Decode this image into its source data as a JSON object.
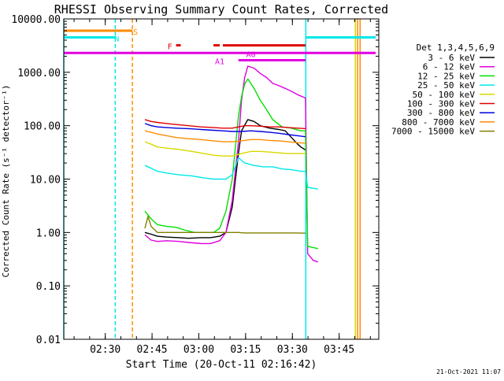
{
  "chart_data": {
    "type": "line",
    "title": "RHESSI Observing Summary Count Rates, Corrected",
    "xlabel": "Start Time (20-Oct-11 02:16:42)",
    "ylabel": "Corrected Count Rate (s⁻¹ detector⁻¹)",
    "footer": "21-Oct-2021 11:07",
    "x_unit": "minutes after 02:16:42",
    "x_range": [
      0,
      101
    ],
    "y_scale": "log",
    "ylim": [
      0.01,
      10000
    ],
    "x_ticks": [
      {
        "x": 13.3,
        "label": "02:30"
      },
      {
        "x": 28.3,
        "label": "02:45"
      },
      {
        "x": 43.3,
        "label": "03:00"
      },
      {
        "x": 58.3,
        "label": "03:15"
      },
      {
        "x": 73.3,
        "label": "03:30"
      },
      {
        "x": 88.3,
        "label": "03:45"
      }
    ],
    "y_ticks": [
      {
        "y": 0.01,
        "label": "0.01"
      },
      {
        "y": 0.1,
        "label": "0.10"
      },
      {
        "y": 1,
        "label": "1.00"
      },
      {
        "y": 10,
        "label": "10.00"
      },
      {
        "y": 100,
        "label": "100.00"
      },
      {
        "y": 1000,
        "label": "1000.00"
      },
      {
        "y": 10000,
        "label": "10000.00"
      }
    ],
    "legend": {
      "title": "Det 1,3,4,5,6,9",
      "position": "right"
    },
    "series": [
      {
        "name": "3 - 6 keV",
        "color": "#000000",
        "points": [
          [
            26,
            1.0
          ],
          [
            28,
            0.93
          ],
          [
            30,
            0.85
          ],
          [
            33,
            0.82
          ],
          [
            37,
            0.8
          ],
          [
            40,
            0.78
          ],
          [
            44,
            0.8
          ],
          [
            47,
            0.8
          ],
          [
            50,
            0.85
          ],
          [
            52,
            1.0
          ],
          [
            54,
            3.0
          ],
          [
            56,
            30
          ],
          [
            57,
            80
          ],
          [
            59,
            130
          ],
          [
            61,
            120
          ],
          [
            63,
            100
          ],
          [
            66,
            90
          ],
          [
            69,
            85
          ],
          [
            71,
            80
          ],
          [
            73,
            60
          ],
          [
            75,
            45
          ],
          [
            76,
            40
          ],
          [
            77.5,
            35
          ]
        ]
      },
      {
        "name": "6 - 12 keV",
        "color": "#e000e0",
        "points": [
          [
            26,
            0.9
          ],
          [
            28,
            0.72
          ],
          [
            30,
            0.68
          ],
          [
            33,
            0.7
          ],
          [
            37,
            0.68
          ],
          [
            40,
            0.65
          ],
          [
            44,
            0.62
          ],
          [
            47,
            0.62
          ],
          [
            50,
            0.7
          ],
          [
            52,
            1.0
          ],
          [
            54,
            4.0
          ],
          [
            56,
            50
          ],
          [
            57,
            300
          ],
          [
            58,
            800
          ],
          [
            59,
            1300
          ],
          [
            61,
            1200
          ],
          [
            63,
            950
          ],
          [
            65,
            800
          ],
          [
            67,
            620
          ],
          [
            69,
            560
          ],
          [
            71,
            500
          ],
          [
            73,
            440
          ],
          [
            75,
            380
          ],
          [
            77.5,
            330
          ],
          [
            78.2,
            0.4
          ],
          [
            80,
            0.3
          ],
          [
            81.5,
            0.28
          ]
        ]
      },
      {
        "name": "12 - 25 keV",
        "color": "#00e000",
        "points": [
          [
            26,
            2.5
          ],
          [
            28,
            1.8
          ],
          [
            30,
            1.4
          ],
          [
            33,
            1.3
          ],
          [
            36,
            1.25
          ],
          [
            39,
            1.1
          ],
          [
            42,
            1.0
          ],
          [
            45,
            1.0
          ],
          [
            48,
            1.0
          ],
          [
            50,
            1.2
          ],
          [
            52,
            2.5
          ],
          [
            54,
            10
          ],
          [
            56,
            150
          ],
          [
            57,
            350
          ],
          [
            58,
            600
          ],
          [
            59,
            750
          ],
          [
            61,
            500
          ],
          [
            63,
            300
          ],
          [
            65,
            200
          ],
          [
            67,
            130
          ],
          [
            70,
            95
          ],
          [
            73,
            90
          ],
          [
            76,
            80
          ],
          [
            77.5,
            80
          ],
          [
            78.2,
            0.55
          ],
          [
            81.5,
            0.5
          ]
        ]
      },
      {
        "name": "25 - 50 keV",
        "color": "#00e8e8",
        "points": [
          [
            26,
            18
          ],
          [
            28,
            16
          ],
          [
            30,
            14
          ],
          [
            33,
            13
          ],
          [
            37,
            12
          ],
          [
            41,
            11.5
          ],
          [
            45,
            10.5
          ],
          [
            48,
            10
          ],
          [
            50,
            10
          ],
          [
            52,
            10
          ],
          [
            54,
            12
          ],
          [
            56,
            25
          ],
          [
            58,
            20
          ],
          [
            61,
            18
          ],
          [
            64,
            17
          ],
          [
            67,
            17
          ],
          [
            70,
            15.5
          ],
          [
            73,
            15
          ],
          [
            76,
            14
          ],
          [
            77.5,
            14
          ],
          [
            78.2,
            7
          ],
          [
            81.5,
            6.5
          ]
        ]
      },
      {
        "name": "50 - 100 keV",
        "color": "#d8d800",
        "points": [
          [
            26,
            50
          ],
          [
            28,
            45
          ],
          [
            30,
            40
          ],
          [
            33,
            38
          ],
          [
            37,
            36
          ],
          [
            41,
            33
          ],
          [
            45,
            30
          ],
          [
            48,
            28
          ],
          [
            51,
            27
          ],
          [
            54,
            27
          ],
          [
            57,
            30
          ],
          [
            60,
            33
          ],
          [
            63,
            33
          ],
          [
            66,
            32
          ],
          [
            69,
            31
          ],
          [
            72,
            30
          ],
          [
            75,
            30
          ],
          [
            77.5,
            30
          ]
        ]
      },
      {
        "name": "100 - 300 keV",
        "color": "#e00000",
        "points": [
          [
            26,
            130
          ],
          [
            28,
            120
          ],
          [
            30,
            115
          ],
          [
            33,
            110
          ],
          [
            36,
            105
          ],
          [
            40,
            100
          ],
          [
            44,
            95
          ],
          [
            48,
            92
          ],
          [
            51,
            90
          ],
          [
            54,
            90
          ],
          [
            56,
            95
          ],
          [
            58,
            100
          ],
          [
            60,
            100
          ],
          [
            63,
            98
          ],
          [
            66,
            95
          ],
          [
            69,
            95
          ],
          [
            72,
            92
          ],
          [
            75,
            90
          ],
          [
            77.5,
            88
          ]
        ]
      },
      {
        "name": "300 - 800 keV",
        "color": "#0000e0",
        "points": [
          [
            26,
            110
          ],
          [
            28,
            100
          ],
          [
            30,
            95
          ],
          [
            33,
            92
          ],
          [
            36,
            90
          ],
          [
            40,
            88
          ],
          [
            44,
            85
          ],
          [
            48,
            82
          ],
          [
            51,
            80
          ],
          [
            54,
            78
          ],
          [
            57,
            78
          ],
          [
            60,
            80
          ],
          [
            63,
            78
          ],
          [
            66,
            75
          ],
          [
            69,
            72
          ],
          [
            72,
            68
          ],
          [
            75,
            65
          ],
          [
            77.5,
            62
          ]
        ]
      },
      {
        "name": "800 - 7000 keV",
        "color": "#ff8c00",
        "points": [
          [
            26,
            80
          ],
          [
            28,
            75
          ],
          [
            30,
            70
          ],
          [
            33,
            65
          ],
          [
            36,
            60
          ],
          [
            40,
            57
          ],
          [
            44,
            55
          ],
          [
            48,
            52
          ],
          [
            51,
            50
          ],
          [
            54,
            50
          ],
          [
            57,
            52
          ],
          [
            60,
            55
          ],
          [
            63,
            55
          ],
          [
            66,
            53
          ],
          [
            69,
            52
          ],
          [
            72,
            50
          ],
          [
            75,
            48
          ],
          [
            77.5,
            47
          ]
        ]
      },
      {
        "name": "7000 - 15000 keV",
        "color": "#808000",
        "points": [
          [
            26,
            1.2
          ],
          [
            27,
            2.0
          ],
          [
            28,
            1.3
          ],
          [
            30,
            1.0
          ],
          [
            34,
            1.0
          ],
          [
            40,
            1.0
          ],
          [
            46,
            1.0
          ],
          [
            52,
            1.0
          ],
          [
            56,
            1.0
          ],
          [
            58,
            0.98
          ],
          [
            63,
            0.98
          ],
          [
            68,
            0.98
          ],
          [
            73,
            0.98
          ],
          [
            77.5,
            0.97
          ]
        ]
      }
    ],
    "vertical_lines": [
      {
        "x": 0.0,
        "color": "#00e8e8",
        "dash": false
      },
      {
        "x": 16.5,
        "color": "#00e8e8",
        "dash": true
      },
      {
        "x": 22.0,
        "color": "#ff8c00",
        "dash": true
      },
      {
        "x": 77.6,
        "color": "#00e8e8",
        "dash": false
      },
      {
        "x": 94.2,
        "color": "#ff8c00",
        "dash": false
      },
      {
        "x": 95.0,
        "color": "#ff8c00",
        "dash": false
      },
      {
        "x": 93.5,
        "color": "#d8d800",
        "dash": false
      }
    ],
    "flags": [
      {
        "label": "S",
        "color": "#ff8c00",
        "y": 6000,
        "x_label": 23,
        "segments": [
          [
            0,
            22
          ]
        ]
      },
      {
        "label": "N",
        "color": "#00e8e8",
        "y": 4500,
        "x_label": 17,
        "segments": [
          [
            0,
            16.5
          ],
          [
            77.8,
            100
          ]
        ]
      },
      {
        "label": "F",
        "color": "#e00000",
        "y": 3200,
        "x_label": 34,
        "segments": [
          [
            36,
            37.5
          ],
          [
            48,
            50
          ],
          [
            51,
            77.5
          ]
        ]
      },
      {
        "label": "A0",
        "color": "#e000e0",
        "y": 2300,
        "x_label": 60,
        "segments": [
          [
            0,
            100
          ]
        ]
      },
      {
        "label": "A1",
        "color": "#e000e0",
        "y": 1680,
        "x_label": 50,
        "segments": [
          [
            56,
            77.5
          ]
        ]
      }
    ]
  }
}
